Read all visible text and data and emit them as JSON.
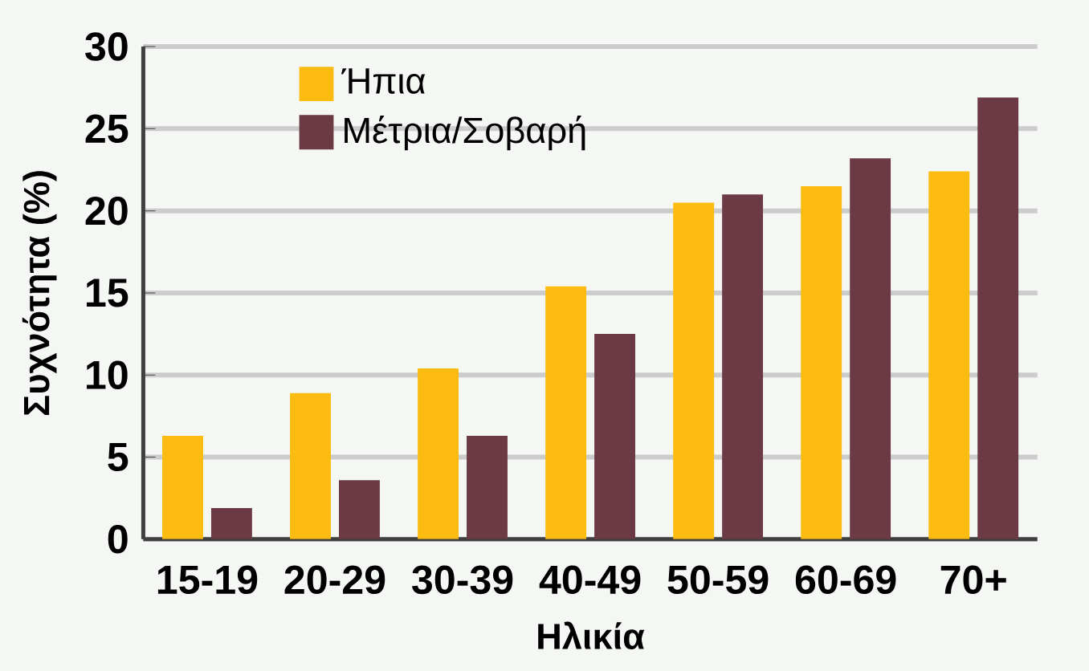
{
  "chart_data": {
    "type": "bar",
    "xlabel": "Ηλικία",
    "ylabel": "Συχνότητα (%)",
    "categories": [
      "15-19",
      "20-29",
      "30-39",
      "40-49",
      "50-59",
      "60-69",
      "70+"
    ],
    "series": [
      {
        "name": "Ήπια",
        "color": "#fbbb10",
        "values": [
          6.3,
          8.9,
          10.4,
          15.4,
          20.5,
          21.5,
          22.4
        ]
      },
      {
        "name": "Μέτρια/Σοβαρή",
        "color": "#6b3a45",
        "values": [
          1.9,
          3.6,
          6.3,
          12.5,
          21.0,
          23.2,
          26.9
        ]
      }
    ],
    "ylim": [
      0,
      30
    ],
    "yticks": [
      0,
      5,
      10,
      15,
      20,
      25,
      30
    ],
    "grid": "y",
    "legend": "top"
  }
}
